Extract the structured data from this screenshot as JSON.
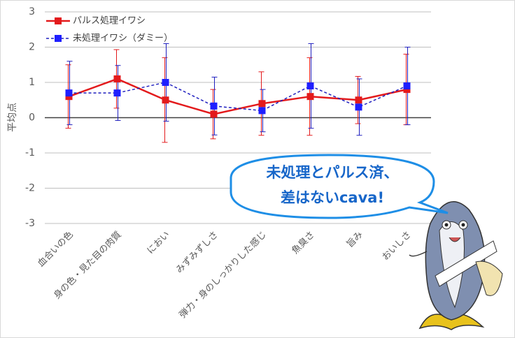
{
  "chart_data": {
    "type": "line",
    "y_label": "平均点",
    "categories": [
      "血合いの色",
      "身の色・見た目の肉質",
      "におい",
      "みずみずしさ",
      "弾力・身のしっかりした感じ",
      "魚臭さ",
      "旨み",
      "おいしさ"
    ],
    "series": [
      {
        "name": "パルス処理イワシ",
        "color": "#e31a1c",
        "dashed": false,
        "values": [
          0.6,
          1.1,
          0.5,
          0.1,
          0.4,
          0.6,
          0.5,
          0.8
        ],
        "errors": [
          0.9,
          0.83,
          1.2,
          0.7,
          0.9,
          1.1,
          0.67,
          1.0
        ]
      },
      {
        "name": "未処理イワシ（ダミー）",
        "color": "#1f1fbf",
        "dashed": true,
        "values": [
          0.7,
          0.7,
          1.0,
          0.33,
          0.2,
          0.9,
          0.3,
          0.9
        ],
        "errors": [
          0.9,
          0.78,
          1.1,
          0.82,
          0.6,
          1.2,
          0.8,
          1.1
        ]
      }
    ],
    "ylim": [
      -3,
      3
    ],
    "yticks": [
      -3,
      -2,
      -1,
      0,
      1,
      2,
      3
    ],
    "grid": true,
    "annotations": [
      "未処理とパルス済、",
      "差はないcava!"
    ]
  }
}
